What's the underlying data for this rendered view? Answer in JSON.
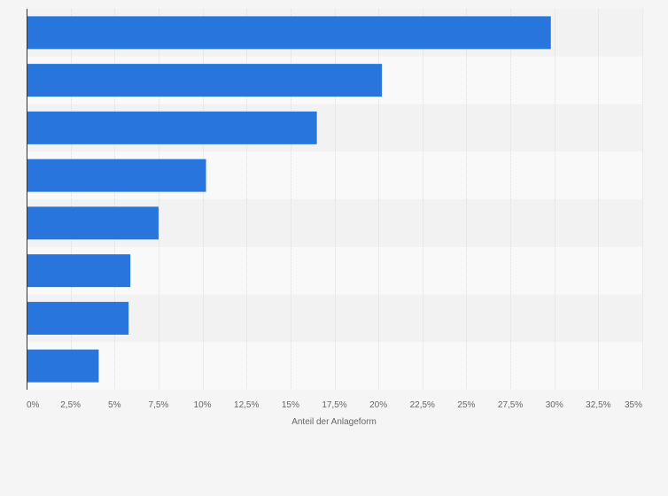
{
  "chart_data": {
    "type": "bar",
    "orientation": "horizontal",
    "title": "",
    "xlabel": "Anteil der Anlageform",
    "ylabel": "",
    "categories": [
      "",
      "",
      "",
      "",
      "",
      "",
      "",
      ""
    ],
    "values": [
      29.8,
      20.2,
      16.5,
      10.2,
      7.5,
      5.9,
      5.8,
      4.1
    ],
    "xlim": [
      0,
      35
    ],
    "ticks": [
      0,
      2.5,
      5,
      7.5,
      10,
      12.5,
      15,
      17.5,
      20,
      22.5,
      25,
      27.5,
      30,
      32.5,
      35
    ],
    "tick_labels": [
      "0%",
      "2,5%",
      "5%",
      "7,5%",
      "10%",
      "12,5%",
      "15%",
      "17,5%",
      "20%",
      "22,5%",
      "25%",
      "27,5%",
      "30%",
      "32,5%",
      "35%"
    ],
    "grid": true,
    "colors": {
      "bar": "#2876dd",
      "band_even": "#f2f2f2",
      "band_odd": "#f9f9f9",
      "grid": "#dcdcdc",
      "axis": "#333333"
    }
  }
}
